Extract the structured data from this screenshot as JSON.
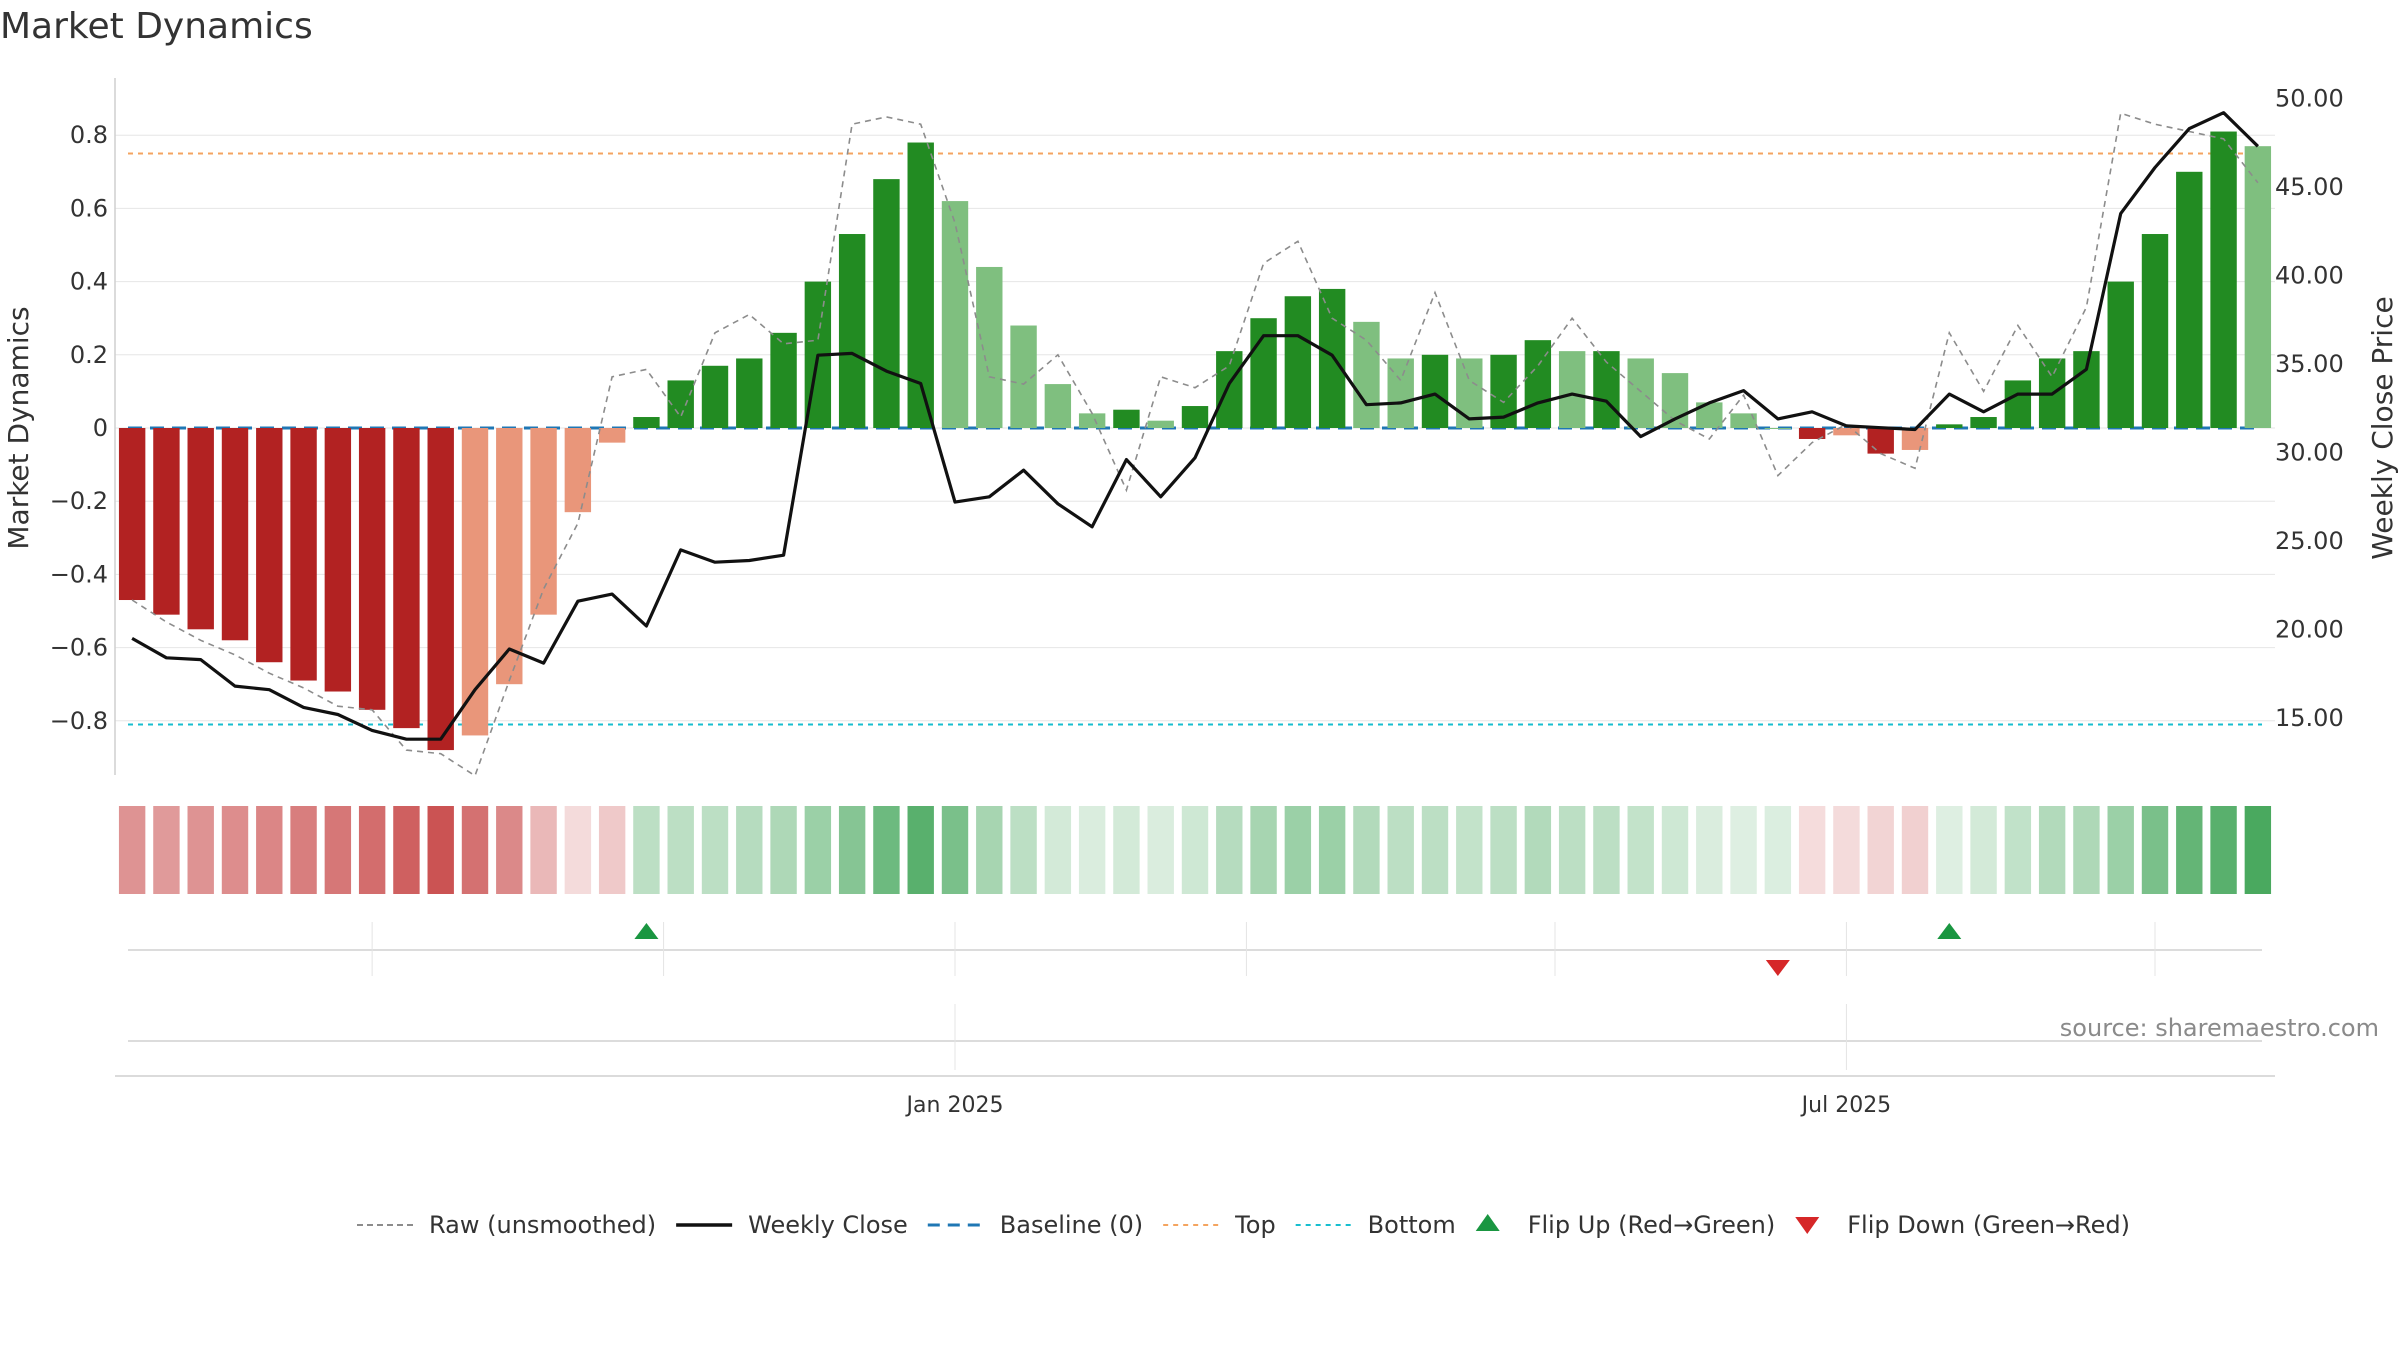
{
  "title": "Market Dynamics",
  "source": "source: sharemaestro.com",
  "colors": {
    "strong_green": "#228b22",
    "light_green": "#7fbf7f",
    "strong_red": "#b22222",
    "light_red": "#e9967a",
    "raw": "#8c8c8c",
    "close": "#111111",
    "baseline": "#1f77b4",
    "top": "#f4a460",
    "bottom": "#17becf",
    "flip_up": "#1a9641",
    "flip_down": "#d62728"
  },
  "chart_data": {
    "type": "bar",
    "title": "Market Dynamics",
    "ylabel": "Market Dynamics",
    "ylabel_right": "Weekly Close Price",
    "ylim": [
      -0.95,
      0.96
    ],
    "ylim_right": [
      12.0,
      50.5
    ],
    "yticks": [
      -0.8,
      -0.6,
      -0.4,
      -0.2,
      0,
      0.2,
      0.4,
      0.6,
      0.8
    ],
    "ytick_labels": [
      "−0.8",
      "−0.6",
      "−0.4",
      "−0.2",
      "0",
      "0.2",
      "0.4",
      "0.6",
      "0.8"
    ],
    "yticks_right": [
      15,
      20,
      25,
      30,
      35,
      40,
      45,
      50
    ],
    "ytick_labels_right": [
      "15.00",
      "20.00",
      "25.00",
      "30.00",
      "35.00",
      "40.00",
      "45.00",
      "50.00"
    ],
    "x_ticks": [
      {
        "label": "Jan 2025",
        "week": 24
      },
      {
        "label": "Jul 2025",
        "week": 50
      }
    ],
    "x_minor_weeks": [
      7,
      15.5,
      32.5,
      41.5,
      59
    ],
    "top_threshold": 0.75,
    "bottom_threshold": -0.81,
    "grid": true,
    "legend_position": "bottom",
    "values": [
      -0.47,
      -0.51,
      -0.55,
      -0.58,
      -0.64,
      -0.69,
      -0.72,
      -0.77,
      -0.82,
      -0.88,
      -0.84,
      -0.7,
      -0.51,
      -0.23,
      -0.04,
      0.03,
      0.13,
      0.17,
      0.19,
      0.26,
      0.4,
      0.53,
      0.68,
      0.78,
      0.62,
      0.44,
      0.28,
      0.12,
      0.04,
      0.05,
      0.02,
      0.06,
      0.21,
      0.3,
      0.36,
      0.38,
      0.29,
      0.19,
      0.2,
      0.19,
      0.2,
      0.24,
      0.21,
      0.21,
      0.19,
      0.15,
      0.07,
      0.04,
      0.0,
      -0.03,
      -0.02,
      -0.07,
      -0.06,
      0.01,
      0.03,
      0.13,
      0.19,
      0.21,
      0.4,
      0.53,
      0.7,
      0.81,
      0.77
    ],
    "raw": [
      -0.47,
      -0.53,
      -0.58,
      -0.62,
      -0.67,
      -0.71,
      -0.76,
      -0.77,
      -0.88,
      -0.89,
      -0.95,
      -0.69,
      -0.44,
      -0.26,
      0.14,
      0.16,
      0.03,
      0.26,
      0.31,
      0.23,
      0.24,
      0.83,
      0.85,
      0.83,
      0.56,
      0.14,
      0.12,
      0.2,
      0.04,
      -0.17,
      0.14,
      0.11,
      0.17,
      0.45,
      0.51,
      0.3,
      0.24,
      0.13,
      0.37,
      0.13,
      0.07,
      0.17,
      0.3,
      0.18,
      0.1,
      0.02,
      -0.03,
      0.09,
      -0.13,
      -0.04,
      0.01,
      -0.07,
      -0.11,
      0.26,
      0.1,
      0.28,
      0.14,
      0.33,
      0.86,
      0.83,
      0.81,
      0.79,
      0.67
    ],
    "close": [
      19.5,
      18.4,
      18.3,
      16.8,
      16.6,
      15.6,
      15.2,
      14.3,
      13.8,
      13.8,
      16.6,
      18.9,
      18.1,
      21.6,
      22.0,
      20.2,
      24.5,
      23.8,
      23.9,
      24.2,
      35.5,
      35.6,
      34.6,
      33.9,
      27.2,
      27.5,
      29.0,
      27.1,
      25.8,
      29.6,
      27.5,
      29.7,
      33.9,
      36.6,
      36.6,
      35.5,
      32.7,
      32.8,
      33.3,
      31.9,
      32.0,
      32.8,
      33.3,
      32.9,
      30.9,
      31.9,
      32.8,
      33.5,
      31.9,
      32.3,
      31.5,
      31.4,
      31.3,
      33.3,
      32.3,
      33.3,
      33.3,
      34.7,
      43.5,
      46.1,
      48.3,
      49.2,
      47.3
    ],
    "color_steps": [
      0.5,
      0.47,
      0.5,
      0.53,
      0.56,
      0.6,
      0.63,
      0.68,
      0.74,
      0.8,
      0.66,
      0.55,
      0.33,
      0.17,
      0.25,
      0.3,
      0.3,
      0.3,
      0.33,
      0.37,
      0.45,
      0.55,
      0.66,
      0.75,
      0.6,
      0.4,
      0.3,
      0.2,
      0.17,
      0.2,
      0.17,
      0.22,
      0.33,
      0.4,
      0.45,
      0.45,
      0.35,
      0.3,
      0.3,
      0.27,
      0.3,
      0.35,
      0.3,
      0.3,
      0.27,
      0.22,
      0.17,
      0.15,
      0.16,
      0.16,
      0.17,
      0.2,
      0.22,
      0.15,
      0.2,
      0.28,
      0.35,
      0.37,
      0.45,
      0.6,
      0.7,
      0.75,
      0.82
    ],
    "flips": [
      {
        "week": 15,
        "direction": "up"
      },
      {
        "week": 48,
        "direction": "down"
      },
      {
        "week": 53,
        "direction": "up"
      }
    ],
    "legend": [
      {
        "label": "Raw (unsmoothed)",
        "kind": "raw"
      },
      {
        "label": "Weekly Close",
        "kind": "close"
      },
      {
        "label": "Baseline (0)",
        "kind": "baseline"
      },
      {
        "label": "Top",
        "kind": "top"
      },
      {
        "label": "Bottom",
        "kind": "bottom"
      },
      {
        "label": "Flip Up (Red→Green)",
        "kind": "flip_up"
      },
      {
        "label": "Flip Down (Green→Red)",
        "kind": "flip_down"
      }
    ]
  }
}
